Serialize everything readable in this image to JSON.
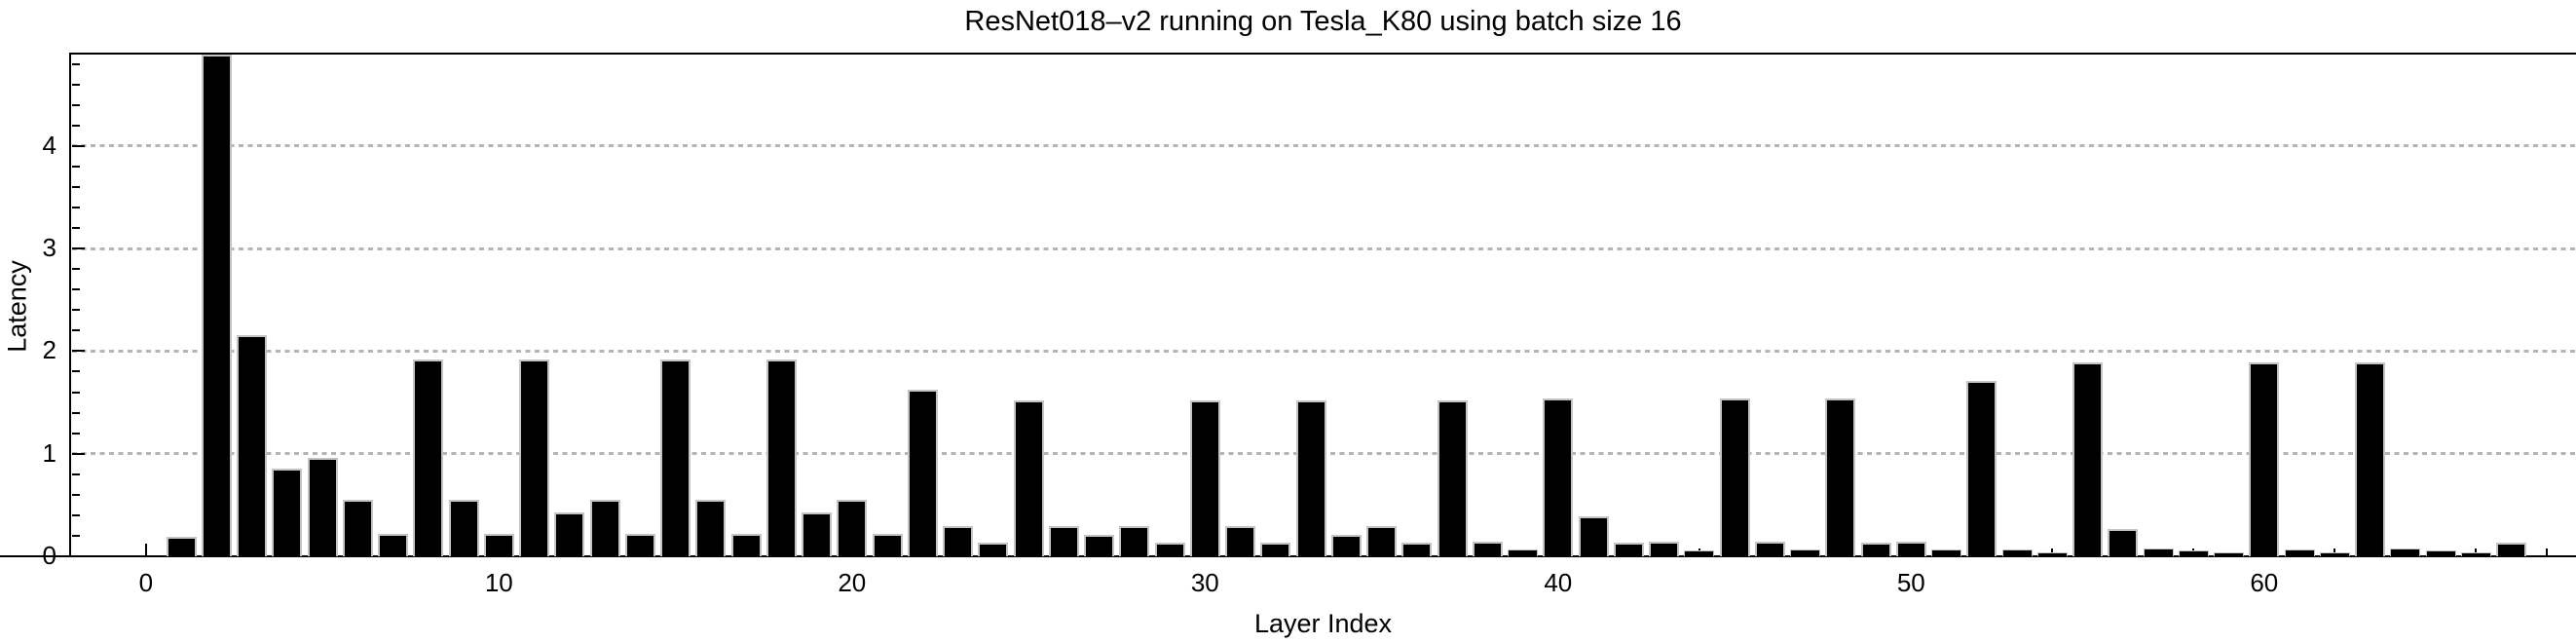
{
  "title": "ResNet018–v2 running on Tesla_K80 using batch size 16",
  "chart_data": {
    "type": "bar",
    "title": "ResNet018–v2 running on Tesla_K80 using batch size 16",
    "xlabel": "Layer Index",
    "ylabel": "Latency",
    "bar_color": "#000000",
    "bar_edge_color": "#c4c4c4",
    "grid_color": "#b4b4b4",
    "grid_style": "dotted-horizontal",
    "legend": "none",
    "xlim": [
      -2.15,
      68.85
    ],
    "ylim": [
      0,
      4.9
    ],
    "x_major_ticks": [
      0,
      10,
      20,
      30,
      40,
      50,
      60
    ],
    "x_tick_labels": [
      "0",
      "10",
      "20",
      "30",
      "40",
      "50",
      "60"
    ],
    "x_minor_tick_step": 2,
    "y_major_ticks": [
      0,
      1,
      2,
      3,
      4
    ],
    "y_tick_labels": [
      "0",
      "1",
      "2",
      "3",
      "4"
    ],
    "y_minor_tick_step": 0.2,
    "gridlines_y": [
      1,
      2,
      3,
      4
    ],
    "clipped_bars_x": [
      2
    ],
    "x": [
      1,
      2,
      3,
      4,
      5,
      6,
      7,
      8,
      9,
      10,
      11,
      12,
      13,
      14,
      15,
      16,
      17,
      18,
      19,
      20,
      21,
      22,
      23,
      24,
      25,
      26,
      27,
      28,
      29,
      30,
      31,
      32,
      33,
      34,
      35,
      36,
      37,
      38,
      39,
      40,
      41,
      42,
      43,
      44,
      45,
      46,
      47,
      48,
      49,
      50,
      51,
      52,
      53,
      54,
      55,
      56,
      57,
      58,
      59,
      60,
      61,
      62,
      63,
      64,
      65,
      66,
      67
    ],
    "values": [
      0.19,
      4.89,
      2.16,
      0.85,
      0.96,
      0.55,
      0.22,
      1.92,
      0.55,
      0.22,
      1.92,
      0.43,
      0.55,
      0.22,
      1.92,
      0.55,
      0.22,
      1.92,
      0.43,
      0.55,
      0.22,
      1.62,
      0.29,
      0.13,
      1.52,
      0.29,
      0.21,
      0.29,
      0.13,
      1.52,
      0.29,
      0.13,
      1.52,
      0.21,
      0.29,
      0.13,
      1.52,
      0.14,
      0.07,
      1.54,
      0.39,
      0.13,
      0.14,
      0.06,
      1.54,
      0.14,
      0.07,
      1.54,
      0.13,
      0.14,
      0.07,
      1.71,
      0.07,
      0.04,
      1.89,
      0.27,
      0.08,
      0.06,
      0.04,
      1.89,
      0.07,
      0.04,
      1.89,
      0.08,
      0.06,
      0.04,
      0.13
    ]
  }
}
